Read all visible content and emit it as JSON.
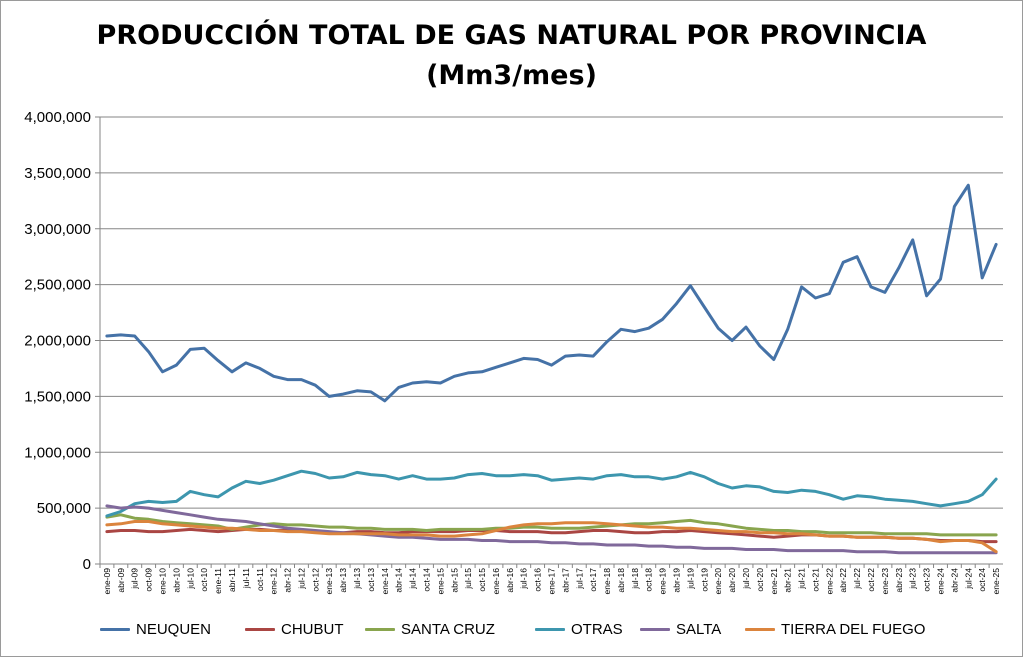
{
  "chart_data": {
    "type": "line",
    "title": "PRODUCCIÓN TOTAL DE GAS NATURAL POR PROVINCIA",
    "subtitle": "(Mm3/mes)",
    "ylim": [
      0,
      4000000
    ],
    "yticks": [
      "0",
      "500,000",
      "1,000,000",
      "1,500,000",
      "2,000,000",
      "2,500,000",
      "3,000,000",
      "3,500,000",
      "4,000,000"
    ],
    "grid": true,
    "legend_position": "bottom",
    "x": [
      "ene-09",
      "abr-09",
      "jul-09",
      "oct-09",
      "ene-10",
      "abr-10",
      "jul-10",
      "oct-10",
      "ene-11",
      "abr-11",
      "jul-11",
      "oct-11",
      "ene-12",
      "abr-12",
      "jul-12",
      "oct-12",
      "ene-13",
      "abr-13",
      "jul-13",
      "oct-13",
      "ene-14",
      "abr-14",
      "jul-14",
      "oct-14",
      "ene-15",
      "abr-15",
      "jul-15",
      "oct-15",
      "ene-16",
      "abr-16",
      "jul-16",
      "oct-16",
      "ene-17",
      "abr-17",
      "jul-17",
      "oct-17",
      "ene-18",
      "abr-18",
      "jul-18",
      "oct-18",
      "ene-19",
      "abr-19",
      "jul-19",
      "oct-19",
      "ene-20",
      "abr-20",
      "jul-20",
      "oct-20",
      "ene-21",
      "abr-21",
      "jul-21",
      "oct-21",
      "ene-22",
      "abr-22",
      "jul-22",
      "oct-22",
      "ene-23",
      "abr-23",
      "jul-23",
      "oct-23",
      "ene-24",
      "abr-24",
      "jul-24",
      "oct-24",
      "ene-25"
    ],
    "series": [
      {
        "name": "NEUQUEN",
        "color": "#4572A7",
        "values": [
          2040000,
          2050000,
          2040000,
          1900000,
          1720000,
          1780000,
          1920000,
          1930000,
          1820000,
          1720000,
          1800000,
          1750000,
          1680000,
          1650000,
          1650000,
          1600000,
          1500000,
          1520000,
          1550000,
          1540000,
          1460000,
          1580000,
          1620000,
          1630000,
          1620000,
          1680000,
          1710000,
          1720000,
          1760000,
          1800000,
          1840000,
          1830000,
          1780000,
          1860000,
          1870000,
          1860000,
          1990000,
          2100000,
          2080000,
          2110000,
          2190000,
          2330000,
          2490000,
          2300000,
          2110000,
          2000000,
          2120000,
          1950000,
          1830000,
          2100000,
          2480000,
          2380000,
          2420000,
          2700000,
          2750000,
          2480000,
          2430000,
          2650000,
          2900000,
          2400000,
          2550000,
          3200000,
          3390000,
          2560000,
          2860000
        ]
      },
      {
        "name": "CHUBUT",
        "color": "#AA4643",
        "values": [
          290000,
          300000,
          300000,
          290000,
          290000,
          300000,
          310000,
          300000,
          290000,
          300000,
          310000,
          310000,
          300000,
          300000,
          300000,
          290000,
          280000,
          280000,
          290000,
          290000,
          280000,
          280000,
          290000,
          290000,
          290000,
          290000,
          300000,
          300000,
          300000,
          290000,
          290000,
          290000,
          280000,
          280000,
          290000,
          300000,
          300000,
          290000,
          280000,
          280000,
          290000,
          290000,
          300000,
          290000,
          280000,
          270000,
          260000,
          250000,
          240000,
          250000,
          260000,
          260000,
          250000,
          250000,
          240000,
          240000,
          240000,
          230000,
          230000,
          220000,
          210000,
          210000,
          210000,
          200000,
          200000
        ]
      },
      {
        "name": "SANTA CRUZ",
        "color": "#89A54E",
        "values": [
          420000,
          440000,
          410000,
          400000,
          380000,
          370000,
          360000,
          350000,
          340000,
          310000,
          330000,
          350000,
          360000,
          350000,
          350000,
          340000,
          330000,
          330000,
          320000,
          320000,
          310000,
          310000,
          310000,
          300000,
          310000,
          310000,
          310000,
          310000,
          320000,
          320000,
          330000,
          330000,
          320000,
          320000,
          320000,
          330000,
          340000,
          350000,
          360000,
          360000,
          370000,
          380000,
          390000,
          370000,
          360000,
          340000,
          320000,
          310000,
          300000,
          300000,
          290000,
          290000,
          280000,
          280000,
          280000,
          280000,
          270000,
          270000,
          270000,
          270000,
          260000,
          260000,
          260000,
          260000,
          260000
        ]
      },
      {
        "name": "OTRAS",
        "color": "#3D96AE",
        "values": [
          430000,
          470000,
          540000,
          560000,
          550000,
          560000,
          650000,
          620000,
          600000,
          680000,
          740000,
          720000,
          750000,
          790000,
          830000,
          810000,
          770000,
          780000,
          820000,
          800000,
          790000,
          760000,
          790000,
          760000,
          760000,
          770000,
          800000,
          810000,
          790000,
          790000,
          800000,
          790000,
          750000,
          760000,
          770000,
          760000,
          790000,
          800000,
          780000,
          780000,
          760000,
          780000,
          820000,
          780000,
          720000,
          680000,
          700000,
          690000,
          650000,
          640000,
          660000,
          650000,
          620000,
          580000,
          610000,
          600000,
          580000,
          570000,
          560000,
          540000,
          520000,
          540000,
          560000,
          620000,
          760000
        ]
      },
      {
        "name": "SALTA",
        "color": "#80699B",
        "values": [
          520000,
          500000,
          510000,
          500000,
          480000,
          460000,
          440000,
          420000,
          400000,
          390000,
          380000,
          360000,
          340000,
          320000,
          310000,
          300000,
          290000,
          280000,
          270000,
          260000,
          250000,
          240000,
          240000,
          230000,
          220000,
          220000,
          220000,
          210000,
          210000,
          200000,
          200000,
          200000,
          190000,
          190000,
          180000,
          180000,
          170000,
          170000,
          170000,
          160000,
          160000,
          150000,
          150000,
          140000,
          140000,
          140000,
          130000,
          130000,
          130000,
          120000,
          120000,
          120000,
          120000,
          120000,
          110000,
          110000,
          110000,
          100000,
          100000,
          100000,
          100000,
          100000,
          100000,
          100000,
          100000
        ]
      },
      {
        "name": "TIERRA DEL FUEGO",
        "color": "#DB843D",
        "values": [
          350000,
          360000,
          380000,
          380000,
          360000,
          350000,
          340000,
          330000,
          320000,
          320000,
          310000,
          300000,
          300000,
          290000,
          290000,
          280000,
          270000,
          270000,
          270000,
          270000,
          270000,
          260000,
          260000,
          260000,
          250000,
          250000,
          260000,
          270000,
          300000,
          330000,
          350000,
          360000,
          360000,
          370000,
          370000,
          370000,
          360000,
          350000,
          340000,
          330000,
          330000,
          320000,
          320000,
          310000,
          300000,
          290000,
          290000,
          280000,
          280000,
          270000,
          270000,
          260000,
          250000,
          250000,
          240000,
          240000,
          240000,
          230000,
          230000,
          220000,
          200000,
          210000,
          210000,
          190000,
          110000
        ]
      }
    ]
  }
}
